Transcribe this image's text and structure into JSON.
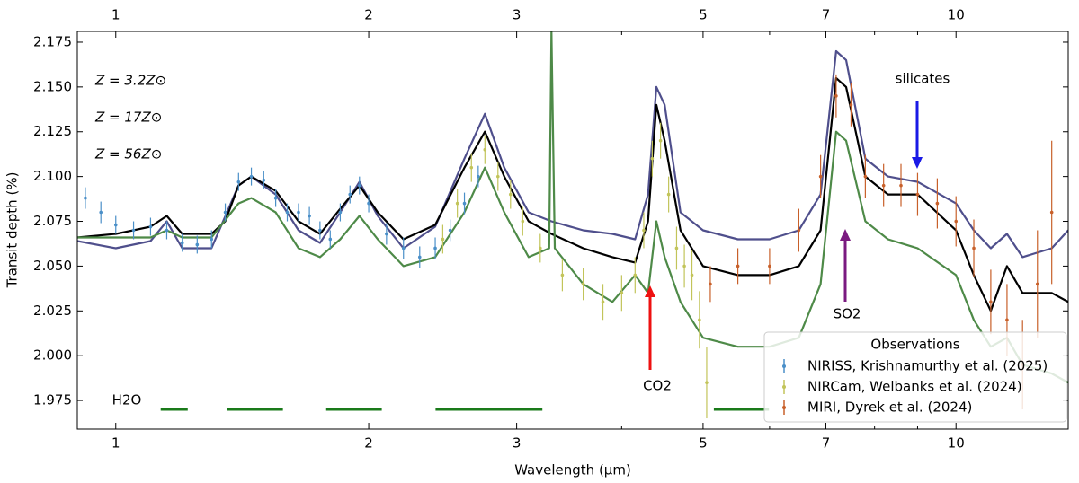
{
  "chart_data": {
    "type": "line",
    "xlabel": "Wavelength (μm)",
    "ylabel": "Transit depth (%)",
    "xscale": "log",
    "xlim": [
      0.9,
      13.6
    ],
    "ylim": [
      1.959,
      2.181
    ],
    "xticks": [
      1,
      2,
      3,
      5,
      7,
      10
    ],
    "xticks_minor": [
      4,
      6,
      8,
      9
    ],
    "yticks": [
      1.975,
      {
        "value": 2.0,
        "label": "2.000"
      },
      2.025,
      {
        "value": 2.05,
        "label": "2.050"
      },
      2.075,
      {
        "value": 2.1,
        "label": "2.100"
      },
      2.125,
      {
        "value": 2.15,
        "label": "2.150"
      },
      2.175
    ],
    "series": [
      {
        "name": "Z = 56Z⊙",
        "color": "#4f4f8c",
        "x": [
          0.9,
          1.0,
          1.1,
          1.15,
          1.2,
          1.3,
          1.4,
          1.45,
          1.55,
          1.65,
          1.75,
          1.85,
          1.95,
          2.05,
          2.2,
          2.4,
          2.6,
          2.75,
          2.9,
          3.1,
          3.3,
          3.6,
          3.9,
          4.15,
          4.3,
          4.4,
          4.5,
          4.7,
          5.0,
          5.5,
          6.0,
          6.5,
          6.9,
          7.2,
          7.4,
          7.8,
          8.3,
          9.0,
          10.0,
          10.5,
          11.0,
          11.5,
          12.0,
          13.0,
          13.6
        ],
        "values": [
          2.064,
          2.06,
          2.064,
          2.075,
          2.06,
          2.06,
          2.095,
          2.1,
          2.09,
          2.07,
          2.063,
          2.08,
          2.097,
          2.078,
          2.06,
          2.072,
          2.11,
          2.135,
          2.105,
          2.08,
          2.075,
          2.07,
          2.068,
          2.065,
          2.09,
          2.15,
          2.14,
          2.08,
          2.07,
          2.065,
          2.065,
          2.07,
          2.09,
          2.17,
          2.165,
          2.11,
          2.1,
          2.097,
          2.085,
          2.07,
          2.06,
          2.068,
          2.055,
          2.06,
          2.07
        ]
      },
      {
        "name": "Z = 17Z⊙",
        "color": "#000000",
        "x": [
          0.9,
          1.0,
          1.1,
          1.15,
          1.2,
          1.3,
          1.35,
          1.4,
          1.45,
          1.55,
          1.65,
          1.75,
          1.85,
          1.95,
          2.05,
          2.2,
          2.4,
          2.6,
          2.75,
          2.9,
          3.1,
          3.3,
          3.6,
          3.9,
          4.15,
          4.3,
          4.4,
          4.5,
          4.7,
          5.0,
          5.5,
          6.0,
          6.5,
          6.9,
          7.2,
          7.4,
          7.8,
          8.3,
          9.0,
          10.0,
          10.5,
          11.0,
          11.5,
          12.0,
          13.0,
          13.6
        ],
        "values": [
          2.066,
          2.068,
          2.072,
          2.078,
          2.068,
          2.068,
          2.075,
          2.095,
          2.1,
          2.092,
          2.075,
          2.068,
          2.082,
          2.095,
          2.08,
          2.065,
          2.073,
          2.105,
          2.125,
          2.1,
          2.075,
          2.068,
          2.06,
          2.055,
          2.052,
          2.075,
          2.14,
          2.12,
          2.07,
          2.05,
          2.045,
          2.045,
          2.05,
          2.07,
          2.155,
          2.15,
          2.1,
          2.09,
          2.09,
          2.07,
          2.045,
          2.025,
          2.05,
          2.035,
          2.035,
          2.03
        ]
      },
      {
        "name": "Z = 3.2Z⊙",
        "color": "#4e8a48",
        "x": [
          0.9,
          1.0,
          1.1,
          1.15,
          1.2,
          1.3,
          1.4,
          1.45,
          1.55,
          1.65,
          1.75,
          1.85,
          1.95,
          2.05,
          2.2,
          2.4,
          2.6,
          2.75,
          2.9,
          3.1,
          3.28,
          3.3,
          3.33,
          3.6,
          3.9,
          4.15,
          4.3,
          4.4,
          4.5,
          4.7,
          5.0,
          5.5,
          6.0,
          6.5,
          6.9,
          7.2,
          7.4,
          7.8,
          8.3,
          9.0,
          10.0,
          10.5,
          11.0,
          11.5,
          12.0,
          13.0,
          13.6
        ],
        "values": [
          2.066,
          2.066,
          2.066,
          2.07,
          2.066,
          2.066,
          2.085,
          2.088,
          2.08,
          2.06,
          2.055,
          2.065,
          2.078,
          2.065,
          2.05,
          2.055,
          2.08,
          2.105,
          2.08,
          2.055,
          2.06,
          2.181,
          2.06,
          2.04,
          2.03,
          2.045,
          2.035,
          2.075,
          2.055,
          2.03,
          2.01,
          2.005,
          2.005,
          2.01,
          2.04,
          2.125,
          2.12,
          2.075,
          2.065,
          2.06,
          2.045,
          2.02,
          2.005,
          2.01,
          1.995,
          1.99,
          1.985
        ]
      }
    ],
    "observations": [
      {
        "name": "NIRISS, Krishnamurthy et al. (2025)",
        "color": "#4a8fc8",
        "x": [
          0.92,
          0.96,
          1.0,
          1.05,
          1.1,
          1.15,
          1.2,
          1.25,
          1.3,
          1.35,
          1.4,
          1.45,
          1.5,
          1.55,
          1.6,
          1.65,
          1.7,
          1.75,
          1.8,
          1.85,
          1.9,
          1.95,
          2.0,
          2.1,
          2.2,
          2.3,
          2.4,
          2.5,
          2.6,
          2.7
        ],
        "values": [
          2.088,
          2.08,
          2.073,
          2.07,
          2.072,
          2.07,
          2.063,
          2.062,
          2.065,
          2.08,
          2.097,
          2.1,
          2.098,
          2.088,
          2.08,
          2.08,
          2.078,
          2.07,
          2.065,
          2.08,
          2.09,
          2.095,
          2.085,
          2.068,
          2.06,
          2.055,
          2.06,
          2.07,
          2.085,
          2.1
        ],
        "errors": [
          0.006,
          0.006,
          0.005,
          0.005,
          0.005,
          0.005,
          0.005,
          0.005,
          0.005,
          0.005,
          0.005,
          0.005,
          0.005,
          0.005,
          0.005,
          0.005,
          0.005,
          0.005,
          0.005,
          0.005,
          0.005,
          0.005,
          0.005,
          0.006,
          0.006,
          0.006,
          0.006,
          0.006,
          0.006,
          0.006
        ]
      },
      {
        "name": "NIRCam, Welbanks et al. (2024)",
        "color": "#c2c45a",
        "x": [
          2.45,
          2.55,
          2.65,
          2.75,
          2.85,
          2.95,
          3.05,
          3.2,
          3.4,
          3.6,
          3.8,
          4.0,
          4.15,
          4.25,
          4.35,
          4.45,
          4.55,
          4.65,
          4.75,
          4.85,
          4.95,
          5.05
        ],
        "values": [
          2.065,
          2.085,
          2.105,
          2.115,
          2.1,
          2.09,
          2.075,
          2.06,
          2.045,
          2.04,
          2.03,
          2.035,
          2.045,
          2.07,
          2.11,
          2.12,
          2.09,
          2.06,
          2.05,
          2.045,
          2.02,
          1.985
        ],
        "errors": [
          0.008,
          0.008,
          0.008,
          0.008,
          0.008,
          0.008,
          0.008,
          0.008,
          0.009,
          0.009,
          0.01,
          0.01,
          0.01,
          0.01,
          0.01,
          0.01,
          0.01,
          0.012,
          0.012,
          0.014,
          0.016,
          0.02
        ]
      },
      {
        "name": "MIRI, Dyrek et al. (2024)",
        "color": "#c8602a",
        "x": [
          5.1,
          5.5,
          6.0,
          6.5,
          6.9,
          7.2,
          7.5,
          7.8,
          8.2,
          8.6,
          9.0,
          9.5,
          10.0,
          10.5,
          11.0,
          11.5,
          12.0,
          12.5,
          13.0
        ],
        "values": [
          2.04,
          2.05,
          2.05,
          2.07,
          2.1,
          2.145,
          2.14,
          2.1,
          2.095,
          2.095,
          2.09,
          2.085,
          2.075,
          2.06,
          2.03,
          2.02,
          1.995,
          2.04,
          2.08
        ],
        "errors": [
          0.01,
          0.01,
          0.01,
          0.012,
          0.012,
          0.012,
          0.012,
          0.012,
          0.012,
          0.012,
          0.012,
          0.014,
          0.014,
          0.016,
          0.018,
          0.02,
          0.025,
          0.03,
          0.04
        ]
      }
    ],
    "legend_title": "Observations",
    "legend_loc": "lower right",
    "annotations": [
      {
        "text": "silicates",
        "color": "#1a1ae6"
      },
      {
        "text": "CO2",
        "color": "#ee1111"
      },
      {
        "text": "SO2",
        "color": "#7a1a80"
      },
      {
        "text": "H2O",
        "color": "#1a7a1a",
        "value": 1.97,
        "spans": [
          [
            1.131,
            1.218
          ],
          [
            1.357,
            1.581
          ],
          [
            1.78,
            2.073
          ],
          [
            2.402,
            3.219
          ],
          [
            5.15,
            5.99
          ]
        ]
      }
    ]
  }
}
